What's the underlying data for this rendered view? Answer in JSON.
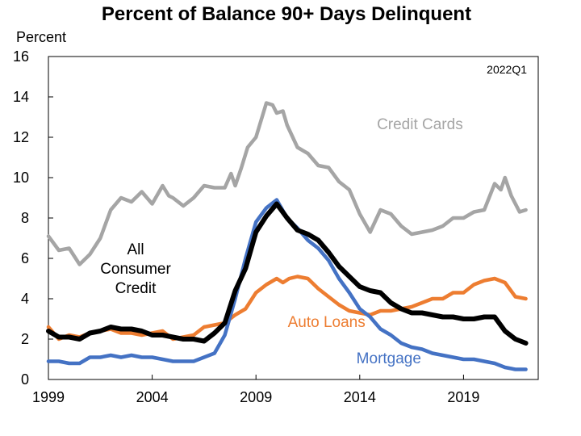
{
  "chart_data": {
    "type": "line",
    "title": "Percent of Balance 90+ Days Delinquent",
    "ylabel": "Percent",
    "xlabel": "",
    "annotation": "2022Q1",
    "xlim": [
      1999,
      2022.6
    ],
    "ylim": [
      0,
      16
    ],
    "x_ticks": [
      1999,
      2004,
      2009,
      2014,
      2019
    ],
    "y_ticks": [
      0,
      2,
      4,
      6,
      8,
      10,
      12,
      14,
      16
    ],
    "grid": false,
    "series": [
      {
        "name": "Credit Cards",
        "label_lines": [
          "Credit Cards"
        ],
        "color": "#a5a5a5",
        "x": [
          1999.0,
          1999.5,
          2000.0,
          2000.5,
          2000.8,
          2001.0,
          2001.5,
          2002.0,
          2002.5,
          2003.0,
          2003.5,
          2004.0,
          2004.5,
          2004.8,
          2005.0,
          2005.5,
          2006.0,
          2006.5,
          2007.0,
          2007.5,
          2007.8,
          2008.0,
          2008.3,
          2008.6,
          2009.0,
          2009.5,
          2009.8,
          2010.0,
          2010.3,
          2010.5,
          2011.0,
          2011.5,
          2012.0,
          2012.5,
          2013.0,
          2013.5,
          2014.0,
          2014.5,
          2015.0,
          2015.5,
          2016.0,
          2016.5,
          2017.0,
          2017.5,
          2018.0,
          2018.5,
          2019.0,
          2019.5,
          2020.0,
          2020.5,
          2020.8,
          2021.0,
          2021.3,
          2021.7,
          2022.0
        ],
        "values": [
          7.1,
          6.4,
          6.5,
          5.7,
          6.0,
          6.2,
          7.0,
          8.4,
          9.0,
          8.8,
          9.3,
          8.7,
          9.6,
          9.1,
          9.0,
          8.6,
          9.0,
          9.6,
          9.5,
          9.5,
          10.2,
          9.6,
          10.5,
          11.5,
          12.0,
          13.7,
          13.6,
          13.2,
          13.3,
          12.6,
          11.5,
          11.2,
          10.6,
          10.5,
          9.8,
          9.4,
          8.2,
          7.3,
          8.4,
          8.2,
          7.6,
          7.2,
          7.3,
          7.4,
          7.6,
          8.0,
          8.0,
          8.3,
          8.4,
          9.7,
          9.4,
          10.0,
          9.1,
          8.3,
          8.4
        ]
      },
      {
        "name": "Auto Loans",
        "label_lines": [
          "Auto Loans"
        ],
        "color": "#ed7d31",
        "x": [
          1999.0,
          1999.5,
          2000.0,
          2000.5,
          2001.0,
          2001.5,
          2002.0,
          2002.5,
          2003.0,
          2003.5,
          2004.0,
          2004.5,
          2005.0,
          2005.5,
          2006.0,
          2006.5,
          2007.0,
          2007.5,
          2008.0,
          2008.5,
          2009.0,
          2009.5,
          2010.0,
          2010.3,
          2010.6,
          2011.0,
          2011.5,
          2012.0,
          2012.5,
          2013.0,
          2013.5,
          2014.0,
          2014.5,
          2015.0,
          2015.5,
          2016.0,
          2016.5,
          2017.0,
          2017.5,
          2018.0,
          2018.5,
          2019.0,
          2019.5,
          2020.0,
          2020.5,
          2021.0,
          2021.5,
          2022.0
        ],
        "values": [
          2.6,
          2.0,
          2.2,
          2.1,
          2.3,
          2.4,
          2.5,
          2.3,
          2.3,
          2.2,
          2.3,
          2.4,
          2.0,
          2.1,
          2.2,
          2.6,
          2.7,
          2.8,
          3.2,
          3.5,
          4.3,
          4.7,
          5.0,
          4.8,
          5.0,
          5.1,
          5.0,
          4.5,
          4.1,
          3.7,
          3.4,
          3.3,
          3.2,
          3.4,
          3.4,
          3.5,
          3.6,
          3.8,
          4.0,
          4.0,
          4.3,
          4.3,
          4.7,
          4.9,
          5.0,
          4.8,
          4.1,
          4.0
        ]
      },
      {
        "name": "Mortgage",
        "label_lines": [
          "Mortgage"
        ],
        "color": "#4472c4",
        "x": [
          1999.0,
          1999.5,
          2000.0,
          2000.5,
          2001.0,
          2001.5,
          2002.0,
          2002.5,
          2003.0,
          2003.5,
          2004.0,
          2004.5,
          2005.0,
          2005.5,
          2006.0,
          2006.5,
          2007.0,
          2007.5,
          2008.0,
          2008.5,
          2009.0,
          2009.5,
          2010.0,
          2010.5,
          2011.0,
          2011.5,
          2012.0,
          2012.5,
          2013.0,
          2013.5,
          2014.0,
          2014.5,
          2015.0,
          2015.5,
          2016.0,
          2016.5,
          2017.0,
          2017.5,
          2018.0,
          2018.5,
          2019.0,
          2019.5,
          2020.0,
          2020.5,
          2021.0,
          2021.5,
          2022.0
        ],
        "values": [
          0.9,
          0.9,
          0.8,
          0.8,
          1.1,
          1.1,
          1.2,
          1.1,
          1.2,
          1.1,
          1.1,
          1.0,
          0.9,
          0.9,
          0.9,
          1.1,
          1.3,
          2.2,
          4.0,
          6.0,
          7.8,
          8.5,
          8.9,
          8.0,
          7.5,
          6.9,
          6.5,
          5.9,
          5.0,
          4.3,
          3.5,
          3.1,
          2.5,
          2.2,
          1.8,
          1.6,
          1.5,
          1.3,
          1.2,
          1.1,
          1.0,
          1.0,
          0.9,
          0.8,
          0.6,
          0.5,
          0.5
        ]
      },
      {
        "name": "All Consumer Credit",
        "label_lines": [
          "All",
          "Consumer",
          "Credit"
        ],
        "color": "#000000",
        "x": [
          1999.0,
          1999.5,
          2000.0,
          2000.5,
          2001.0,
          2001.5,
          2002.0,
          2002.5,
          2003.0,
          2003.5,
          2004.0,
          2004.5,
          2005.0,
          2005.5,
          2006.0,
          2006.5,
          2007.0,
          2007.5,
          2008.0,
          2008.5,
          2009.0,
          2009.5,
          2010.0,
          2010.5,
          2011.0,
          2011.5,
          2012.0,
          2012.5,
          2013.0,
          2013.5,
          2014.0,
          2014.5,
          2015.0,
          2015.5,
          2016.0,
          2016.5,
          2017.0,
          2017.5,
          2018.0,
          2018.5,
          2019.0,
          2019.5,
          2020.0,
          2020.5,
          2021.0,
          2021.5,
          2022.0
        ],
        "values": [
          2.4,
          2.1,
          2.1,
          2.0,
          2.3,
          2.4,
          2.6,
          2.5,
          2.5,
          2.4,
          2.2,
          2.2,
          2.1,
          2.0,
          2.0,
          1.9,
          2.3,
          2.8,
          4.4,
          5.5,
          7.3,
          8.1,
          8.7,
          8.0,
          7.4,
          7.2,
          6.9,
          6.3,
          5.6,
          5.1,
          4.6,
          4.4,
          4.3,
          3.8,
          3.5,
          3.3,
          3.3,
          3.2,
          3.1,
          3.1,
          3.0,
          3.0,
          3.1,
          3.1,
          2.4,
          2.0,
          1.8
        ]
      }
    ]
  }
}
